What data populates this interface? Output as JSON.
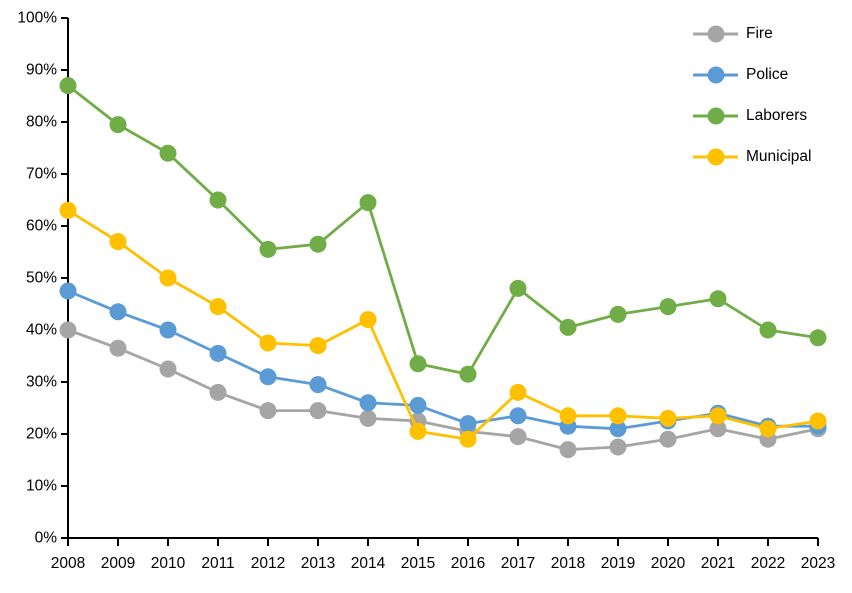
{
  "chart_data": {
    "type": "line",
    "title": "",
    "xlabel": "",
    "ylabel": "",
    "x_categories": [
      "2008",
      "2009",
      "2010",
      "2011",
      "2012",
      "2013",
      "2014",
      "2015",
      "2016",
      "2017",
      "2018",
      "2019",
      "2020",
      "2021",
      "2022",
      "2023"
    ],
    "series": [
      {
        "name": "Fire",
        "color": "#A5A5A5",
        "values": [
          40,
          36.5,
          32.5,
          28,
          24.5,
          24.5,
          23,
          22.5,
          20.5,
          19.5,
          17,
          17.5,
          19,
          21,
          19,
          21
        ]
      },
      {
        "name": "Police",
        "color": "#5B9BD5",
        "values": [
          47.5,
          43.5,
          40,
          35.5,
          31,
          29.5,
          26,
          25.5,
          22,
          23.5,
          21.5,
          21,
          22.5,
          24,
          21.5,
          21.5
        ]
      },
      {
        "name": "Laborers",
        "color": "#70AD47",
        "values": [
          87,
          79.5,
          74,
          65,
          55.5,
          56.5,
          64.5,
          33.5,
          31.5,
          48,
          40.5,
          43,
          44.5,
          46,
          40,
          38.5
        ]
      },
      {
        "name": "Municipal",
        "color": "#FFC000",
        "values": [
          63,
          57,
          50,
          44.5,
          37.5,
          37,
          42,
          20.5,
          19,
          28,
          23.5,
          23.5,
          23,
          23.5,
          21,
          22.5
        ]
      }
    ],
    "ylim": [
      0,
      100
    ],
    "ytick_step": 10,
    "ytick_suffix": "%",
    "grid": false,
    "legend_position": "top-right",
    "axis_color": "#000000",
    "text_color": "#000000",
    "background_color": "#FFFFFF"
  }
}
